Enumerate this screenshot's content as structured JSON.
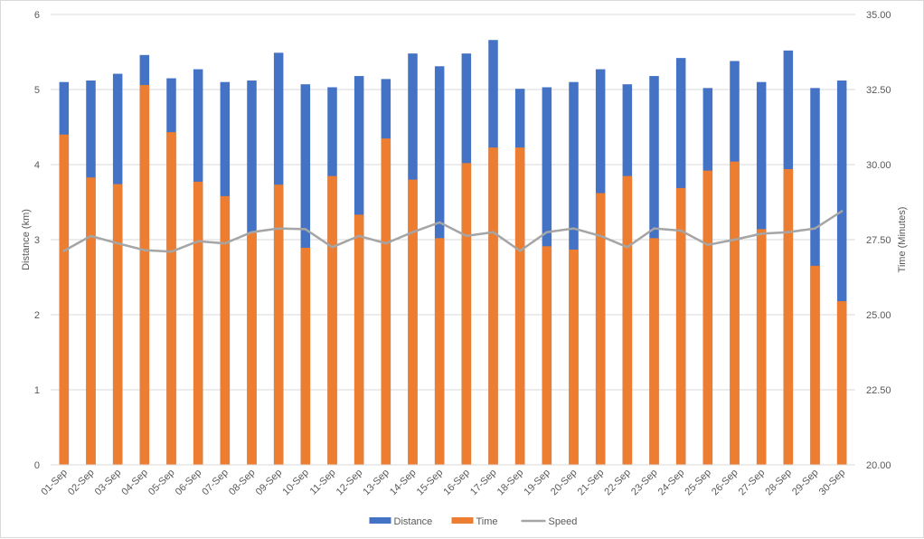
{
  "chart_data": {
    "type": "bar",
    "stacked": true,
    "categories": [
      "01-Sep",
      "02-Sep",
      "03-Sep",
      "04-Sep",
      "05-Sep",
      "06-Sep",
      "07-Sep",
      "08-Sep",
      "09-Sep",
      "10-Sep",
      "11-Sep",
      "12-Sep",
      "13-Sep",
      "14-Sep",
      "15-Sep",
      "16-Sep",
      "17-Sep",
      "18-Sep",
      "19-Sep",
      "20-Sep",
      "21-Sep",
      "22-Sep",
      "23-Sep",
      "24-Sep",
      "25-Sep",
      "26-Sep",
      "27-Sep",
      "28-Sep",
      "29-Sep",
      "30-Sep"
    ],
    "series": [
      {
        "name": "Distance",
        "type": "bar",
        "axis": "left",
        "color": "#4472c4",
        "values": [
          5.1,
          5.12,
          5.21,
          5.46,
          5.15,
          5.27,
          5.1,
          5.12,
          5.49,
          5.07,
          5.03,
          5.18,
          5.14,
          5.48,
          5.31,
          5.48,
          5.66,
          5.01,
          5.03,
          5.1,
          5.27,
          5.07,
          5.18,
          5.42,
          5.02,
          5.38,
          5.1,
          5.52,
          5.02,
          5.12
        ]
      },
      {
        "name": "Time",
        "type": "bar",
        "axis": "right",
        "color": "#ed7d31",
        "values": [
          31.0,
          29.57,
          29.35,
          32.65,
          31.08,
          29.43,
          28.95,
          27.75,
          29.33,
          27.23,
          29.62,
          28.33,
          30.87,
          29.5,
          27.55,
          30.05,
          30.57,
          30.57,
          27.28,
          27.17,
          29.05,
          29.62,
          27.55,
          29.22,
          29.8,
          30.1,
          27.85,
          29.85,
          26.63,
          25.45
        ]
      },
      {
        "name": "Speed",
        "type": "line",
        "axis": "left",
        "color": "#a5a5a5",
        "values": [
          2.85,
          3.05,
          2.95,
          2.86,
          2.84,
          2.98,
          2.95,
          3.1,
          3.15,
          3.14,
          2.9,
          3.05,
          2.95,
          3.1,
          3.23,
          3.05,
          3.1,
          2.85,
          3.1,
          3.15,
          3.05,
          2.9,
          3.15,
          3.12,
          2.93,
          3.0,
          3.08,
          3.1,
          3.15,
          3.38
        ]
      }
    ],
    "ylabel": "Distance (km)",
    "ylim": [
      0,
      6
    ],
    "yticks": [
      "0",
      "1",
      "2",
      "3",
      "4",
      "5",
      "6"
    ],
    "y2label": "Time (Minutes)",
    "y2lim": [
      20,
      35
    ],
    "y2ticks": [
      "20.00",
      "22.50",
      "25.00",
      "27.50",
      "30.00",
      "32.50",
      "35.00"
    ],
    "grid": true,
    "legend": "bottom",
    "grid_color": "#d9d9d9",
    "text_color": "#595959"
  }
}
